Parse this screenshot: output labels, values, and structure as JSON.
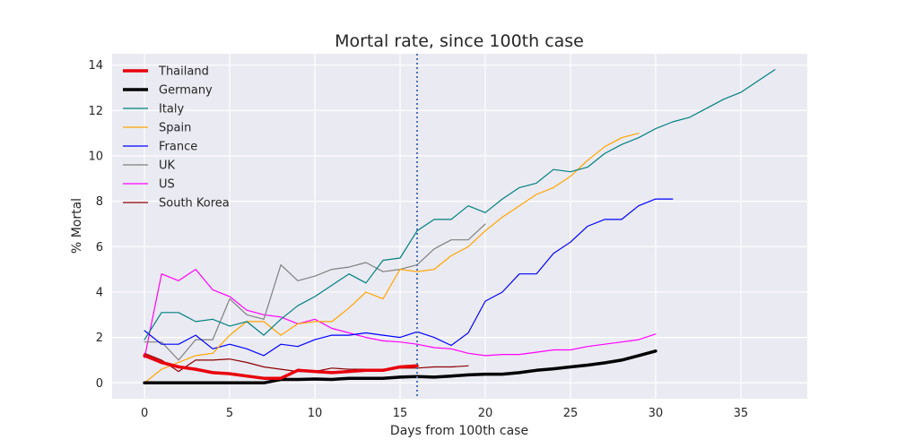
{
  "chart_data": {
    "type": "line",
    "title": "Mortal rate, since 100th case",
    "xlabel": "Days from 100th case",
    "ylabel": "% Mortal",
    "xlim": [
      -1.9,
      38.9
    ],
    "ylim": [
      -0.7,
      14.5
    ],
    "xticks": [
      0,
      5,
      10,
      15,
      20,
      25,
      30,
      35
    ],
    "yticks": [
      0,
      2,
      4,
      6,
      8,
      10,
      12,
      14
    ],
    "grid": true,
    "legend": "top-left",
    "vline": {
      "x": 16,
      "color": "#4c72b0",
      "style": "dotted"
    },
    "series": [
      {
        "name": "Thailand",
        "color": "#e8000b",
        "width": 3.5,
        "x": [
          0,
          1,
          2,
          3,
          4,
          5,
          6,
          7,
          8,
          9,
          10,
          11,
          12,
          13,
          14,
          15,
          16
        ],
        "y": [
          1.2,
          0.9,
          0.7,
          0.6,
          0.45,
          0.4,
          0.3,
          0.2,
          0.2,
          0.55,
          0.5,
          0.45,
          0.5,
          0.55,
          0.55,
          0.7,
          0.75
        ]
      },
      {
        "name": "Germany",
        "color": "#000000",
        "width": 3.5,
        "x": [
          0,
          1,
          2,
          3,
          4,
          5,
          6,
          7,
          8,
          9,
          10,
          11,
          12,
          13,
          14,
          15,
          16,
          17,
          18,
          19,
          20,
          21,
          22,
          23,
          24,
          25,
          26,
          27,
          28,
          29,
          30
        ],
        "y": [
          0,
          0,
          0,
          0,
          0,
          0,
          0,
          0,
          0.15,
          0.15,
          0.17,
          0.15,
          0.2,
          0.2,
          0.2,
          0.25,
          0.28,
          0.25,
          0.3,
          0.35,
          0.38,
          0.38,
          0.45,
          0.55,
          0.62,
          0.7,
          0.78,
          0.88,
          1.0,
          1.2,
          1.4
        ]
      },
      {
        "name": "Italy",
        "color": "#008080",
        "width": 1.2,
        "x": [
          0,
          1,
          2,
          3,
          4,
          5,
          6,
          7,
          8,
          9,
          10,
          11,
          12,
          13,
          14,
          15,
          16,
          17,
          18,
          19,
          20,
          21,
          22,
          23,
          24,
          25,
          26,
          27,
          28,
          29,
          30,
          31,
          32,
          33,
          34,
          35,
          36,
          37
        ],
        "y": [
          1.9,
          3.1,
          3.1,
          2.7,
          2.8,
          2.5,
          2.7,
          2.1,
          2.8,
          3.4,
          3.8,
          4.3,
          4.8,
          4.4,
          5.4,
          5.5,
          6.7,
          7.2,
          7.2,
          7.8,
          7.5,
          8.1,
          8.6,
          8.8,
          9.4,
          9.3,
          9.5,
          10.1,
          10.5,
          10.8,
          11.2,
          11.5,
          11.7,
          12.1,
          12.5,
          12.8,
          13.3,
          13.8
        ]
      },
      {
        "name": "Spain",
        "color": "#ffa500",
        "width": 1.2,
        "x": [
          0,
          1,
          2,
          3,
          4,
          5,
          6,
          7,
          8,
          9,
          10,
          11,
          12,
          13,
          14,
          15,
          16,
          17,
          18,
          19,
          20,
          21,
          22,
          23,
          24,
          25,
          26,
          27,
          28,
          29
        ],
        "y": [
          0,
          0.6,
          0.9,
          1.2,
          1.3,
          2.1,
          2.7,
          2.7,
          2.1,
          2.6,
          2.7,
          2.7,
          3.3,
          4.0,
          3.7,
          5.0,
          4.9,
          5.0,
          5.6,
          6.0,
          6.7,
          7.3,
          7.8,
          8.3,
          8.6,
          9.1,
          9.8,
          10.4,
          10.8,
          11.0
        ]
      },
      {
        "name": "France",
        "color": "#0000ff",
        "width": 1.2,
        "x": [
          0,
          1,
          2,
          3,
          4,
          5,
          6,
          7,
          8,
          9,
          10,
          11,
          12,
          13,
          14,
          15,
          16,
          17,
          18,
          19,
          20,
          21,
          22,
          23,
          24,
          25,
          26,
          27,
          28,
          29,
          30,
          31
        ],
        "y": [
          2.3,
          1.7,
          1.7,
          2.1,
          1.5,
          1.7,
          1.5,
          1.2,
          1.7,
          1.6,
          1.9,
          2.1,
          2.1,
          2.2,
          2.1,
          2.0,
          2.25,
          2.0,
          1.65,
          2.2,
          3.6,
          4.0,
          4.8,
          4.8,
          5.7,
          6.2,
          6.9,
          7.2,
          7.2,
          7.8,
          8.1,
          8.1
        ]
      },
      {
        "name": "UK",
        "color": "#808080",
        "width": 1.2,
        "x": [
          0,
          1,
          2,
          3,
          4,
          5,
          6,
          7,
          8,
          9,
          10,
          11,
          12,
          13,
          14,
          15,
          16,
          17,
          18,
          19,
          20
        ],
        "y": [
          1.8,
          1.8,
          1.0,
          1.9,
          1.9,
          3.7,
          3.0,
          2.8,
          5.2,
          4.5,
          4.7,
          5.0,
          5.1,
          5.3,
          4.9,
          5.0,
          5.2,
          5.9,
          6.3,
          6.3,
          7.0
        ]
      },
      {
        "name": "US",
        "color": "#ff00ff",
        "width": 1.2,
        "x": [
          0,
          1,
          2,
          3,
          4,
          5,
          6,
          7,
          8,
          9,
          10,
          11,
          12,
          13,
          14,
          15,
          16,
          17,
          18,
          19,
          20,
          21,
          22,
          23,
          24,
          25,
          26,
          27,
          28,
          29,
          30
        ],
        "y": [
          1.1,
          4.8,
          4.5,
          5.0,
          4.1,
          3.8,
          3.2,
          3.0,
          2.9,
          2.6,
          2.8,
          2.4,
          2.2,
          2.0,
          1.85,
          1.8,
          1.7,
          1.55,
          1.5,
          1.3,
          1.2,
          1.25,
          1.25,
          1.35,
          1.45,
          1.45,
          1.6,
          1.7,
          1.8,
          1.9,
          2.15
        ]
      },
      {
        "name": "South Korea",
        "color": "#8b0000",
        "width": 1.2,
        "x": [
          0,
          1,
          2,
          3,
          4,
          5,
          6,
          7,
          8,
          9,
          10,
          11,
          12,
          13,
          14,
          15,
          16,
          17,
          18,
          19
        ],
        "y": [
          1.3,
          1.0,
          0.5,
          1.0,
          1.0,
          1.05,
          0.9,
          0.7,
          0.6,
          0.5,
          0.5,
          0.65,
          0.6,
          0.6,
          0.6,
          0.65,
          0.65,
          0.7,
          0.7,
          0.75
        ]
      }
    ]
  }
}
